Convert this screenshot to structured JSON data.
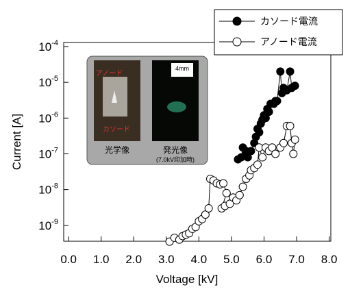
{
  "chart_data": {
    "type": "line",
    "xlabel": "Voltage [kV]",
    "ylabel": "Current [A]",
    "yscale": "log",
    "xlim": [
      -0.15,
      8.05
    ],
    "ylim": [
      3.6e-10,
      0.00013
    ],
    "xticks": [
      {
        "value": 0,
        "label": "0.0"
      },
      {
        "value": 1,
        "label": "1.0"
      },
      {
        "value": 2,
        "label": "2.0"
      },
      {
        "value": 3,
        "label": "3.0"
      },
      {
        "value": 4,
        "label": "4.0"
      },
      {
        "value": 5,
        "label": "5.0"
      },
      {
        "value": 6,
        "label": "6.0"
      },
      {
        "value": 7,
        "label": "7.0"
      },
      {
        "value": 8,
        "label": "8.0"
      }
    ],
    "yticks": [
      {
        "value": 1e-09,
        "label": "10",
        "exponent": "-9"
      },
      {
        "value": 1e-08,
        "label": "10",
        "exponent": "-8"
      },
      {
        "value": 1e-07,
        "label": "10",
        "exponent": "-7"
      },
      {
        "value": 1e-06,
        "label": "10",
        "exponent": "-6"
      },
      {
        "value": 1e-05,
        "label": "10",
        "exponent": "-5"
      },
      {
        "value": 0.0001,
        "label": "10",
        "exponent": "-4"
      }
    ],
    "legend": "upper right",
    "series": [
      {
        "name": "カソード電流",
        "color": "#000000",
        "marker": "filled",
        "x": [
          5.2,
          5.3,
          5.35,
          5.45,
          5.5,
          5.6,
          5.7,
          5.75,
          5.8,
          5.85,
          5.9,
          5.95,
          6.0,
          6.05,
          6.1,
          6.15,
          6.2,
          6.3,
          6.35,
          6.4,
          6.5,
          6.55,
          6.6,
          6.7,
          6.8,
          6.85,
          6.95
        ],
        "values": [
          7e-08,
          8e-08,
          1.5e-07,
          1.2e-07,
          8e-08,
          1.2e-07,
          2e-07,
          3e-07,
          5e-07,
          4e-07,
          7e-07,
          9e-07,
          1.2e-06,
          1e-06,
          1.8e-06,
          1.5e-06,
          2.5e-06,
          2.5e-06,
          3e-06,
          3e-06,
          2e-05,
          5e-06,
          7e-06,
          6e-06,
          2e-05,
          7e-06,
          8e-06
        ]
      },
      {
        "name": "アノード電流",
        "color": "#000000",
        "marker": "open",
        "x": [
          3.1,
          3.25,
          3.4,
          3.5,
          3.6,
          3.7,
          3.8,
          3.9,
          4.0,
          4.1,
          4.2,
          4.3,
          4.35,
          4.45,
          4.55,
          4.65,
          4.75,
          4.85,
          4.7,
          4.8,
          4.95,
          5.05,
          5.15,
          5.25,
          5.35,
          5.45,
          5.55,
          5.6,
          5.7,
          5.8,
          5.85,
          5.95,
          6.05,
          6.15,
          6.25,
          6.35,
          6.5,
          6.6,
          6.7,
          6.8,
          6.85,
          6.9,
          6.95
        ],
        "values": [
          3.5e-10,
          4.5e-10,
          4e-10,
          5e-10,
          5.5e-10,
          6e-10,
          8e-10,
          9e-10,
          1.3e-09,
          1.5e-09,
          2e-09,
          3e-09,
          2e-08,
          1.8e-08,
          1.5e-08,
          1.4e-08,
          1.5e-08,
          8e-09,
          3e-09,
          3.5e-09,
          4e-09,
          6e-09,
          5e-09,
          7e-09,
          1.2e-08,
          2e-08,
          2.5e-08,
          3.5e-08,
          4e-08,
          5e-08,
          1.5e-07,
          8e-08,
          1.5e-07,
          1.2e-07,
          1.5e-07,
          1e-07,
          1.5e-07,
          2e-07,
          6e-07,
          6e-07,
          2e-07,
          1e-07,
          2.5e-07
        ]
      }
    ],
    "inset": {
      "left_caption": "光学像",
      "right_caption": "発光像",
      "right_note": "(7.0kV印加時)",
      "scale": "4mm",
      "anode_label": "アノード",
      "cathode_label": "カソード"
    }
  }
}
